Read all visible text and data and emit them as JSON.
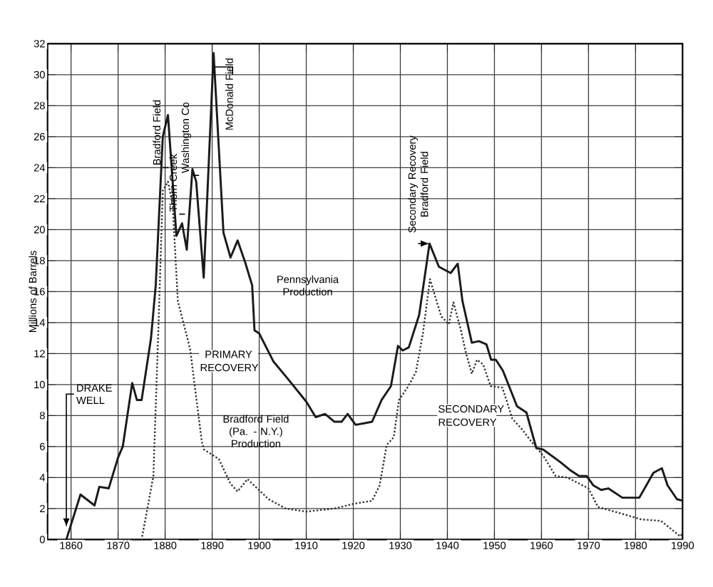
{
  "chart_data": {
    "type": "line",
    "ylabel": "Millions of Barrels",
    "xlim": [
      1855,
      1990
    ],
    "ylim": [
      0,
      32
    ],
    "xticks": [
      1860,
      1870,
      1880,
      1890,
      1900,
      1910,
      1920,
      1930,
      1940,
      1950,
      1960,
      1970,
      1980,
      1990
    ],
    "yticks": [
      0,
      2,
      4,
      6,
      8,
      10,
      12,
      14,
      16,
      18,
      20,
      22,
      24,
      26,
      28,
      30,
      32
    ],
    "grid": true,
    "series": [
      {
        "name": "Pennsylvania Production",
        "color": "#1a1a1a",
        "line_style": "solid",
        "x": [
          1859,
          1862,
          1865,
          1866,
          1868,
          1870,
          1871,
          1873,
          1874,
          1875,
          1877,
          1878,
          1879.5,
          1880.6,
          1882.4,
          1883.6,
          1884.6,
          1885.8,
          1886.6,
          1888.2,
          1890.3,
          1892.4,
          1893.9,
          1895.4,
          1897,
          1898.5,
          1899,
          1900,
          1903,
          1906,
          1910,
          1912,
          1914,
          1916,
          1917.5,
          1918.8,
          1920.5,
          1924,
          1926,
          1928,
          1929.5,
          1930.5,
          1931.8,
          1934,
          1936.2,
          1938.2,
          1940.7,
          1942.2,
          1943.2,
          1945.2,
          1946.7,
          1948.3,
          1949.3,
          1950.3,
          1951.8,
          1954.8,
          1956.8,
          1958.9,
          1960.4,
          1964,
          1966,
          1968,
          1969.6,
          1971,
          1972.7,
          1974.2,
          1977.2,
          1980.8,
          1982.3,
          1983.8,
          1985.6,
          1986.8,
          1988.8,
          1990
        ],
        "values": [
          0,
          2.9,
          2.2,
          3.4,
          3.3,
          5.3,
          6,
          10.1,
          9.0,
          9.0,
          13.0,
          16.4,
          26,
          27.4,
          19.6,
          20.4,
          18.7,
          23.9,
          23.1,
          16.9,
          31.4,
          19.8,
          18.2,
          19.3,
          17.9,
          16.4,
          13.5,
          13.3,
          11.5,
          10.4,
          8.9,
          7.9,
          8.1,
          7.6,
          7.6,
          8.1,
          7.4,
          7.6,
          9.0,
          9.9,
          12.5,
          12.2,
          12.4,
          14.5,
          19.1,
          17.6,
          17.2,
          17.8,
          15.4,
          12.7,
          12.8,
          12.6,
          11.6,
          11.6,
          10.9,
          8.6,
          8.2,
          5.9,
          5.8,
          5.0,
          4.5,
          4.1,
          4.1,
          3.5,
          3.2,
          3.3,
          2.7,
          2.7,
          3.5,
          4.3,
          4.6,
          3.5,
          2.6,
          2.5
        ]
      },
      {
        "name": "Bradford Field (Pa. - N.Y.) Production",
        "color": "#333333",
        "line_style": "dotted",
        "x": [
          1871,
          1875,
          1877.5,
          1878.5,
          1879.5,
          1880.6,
          1881.6,
          1882.7,
          1885.3,
          1887.8,
          1888.3,
          1891.4,
          1893.9,
          1895.4,
          1897.5,
          1902,
          1905.6,
          1910,
          1916,
          1920,
          1924,
          1925.6,
          1927.1,
          1928.6,
          1929.7,
          1931.7,
          1933.3,
          1934.8,
          1936.3,
          1938.7,
          1940.3,
          1941.3,
          1942.8,
          1943.9,
          1945.2,
          1946.3,
          1947.6,
          1949.2,
          1951.7,
          1953.8,
          1955.9,
          1957.9,
          1960.4,
          1963,
          1965.5,
          1970,
          1972,
          1976.7,
          1981.2,
          1985.4,
          1987.5,
          1989.5,
          1990
        ],
        "values": [
          0,
          0,
          4.1,
          13.0,
          22.5,
          23.1,
          21.6,
          15.4,
          12.3,
          6.3,
          5.8,
          5.2,
          3.6,
          3.1,
          3.9,
          2.6,
          2.0,
          1.8,
          2.0,
          2.3,
          2.5,
          3.5,
          6.1,
          6.6,
          9.0,
          9.9,
          10.8,
          13.3,
          16.8,
          14.4,
          13.9,
          15.3,
          13.6,
          12.1,
          10.7,
          11.6,
          11.3,
          9.9,
          9.8,
          7.8,
          7.1,
          6.3,
          5.4,
          4.1,
          4.0,
          3.3,
          2.1,
          1.7,
          1.3,
          1.2,
          0.7,
          0.2,
          0.4
        ]
      }
    ],
    "annotations": [
      {
        "text": "DRAKE WELL",
        "x": 1859,
        "y": 0.8
      },
      {
        "text": "Bradford Field",
        "x": 1879.5,
        "y": 24
      },
      {
        "text": "Thorn Creek",
        "x": 1883,
        "y": 21
      },
      {
        "text": "Washington Co",
        "x": 1886,
        "y": 23.5
      },
      {
        "text": "McDonald Field",
        "x": 1890.3,
        "y": 30.5
      },
      {
        "text": "Secondary Recovery Bradford Field",
        "x": 1936.2,
        "y": 19.1
      },
      "PRIMARY RECOVERY",
      "SECONDARY RECOVERY"
    ]
  }
}
